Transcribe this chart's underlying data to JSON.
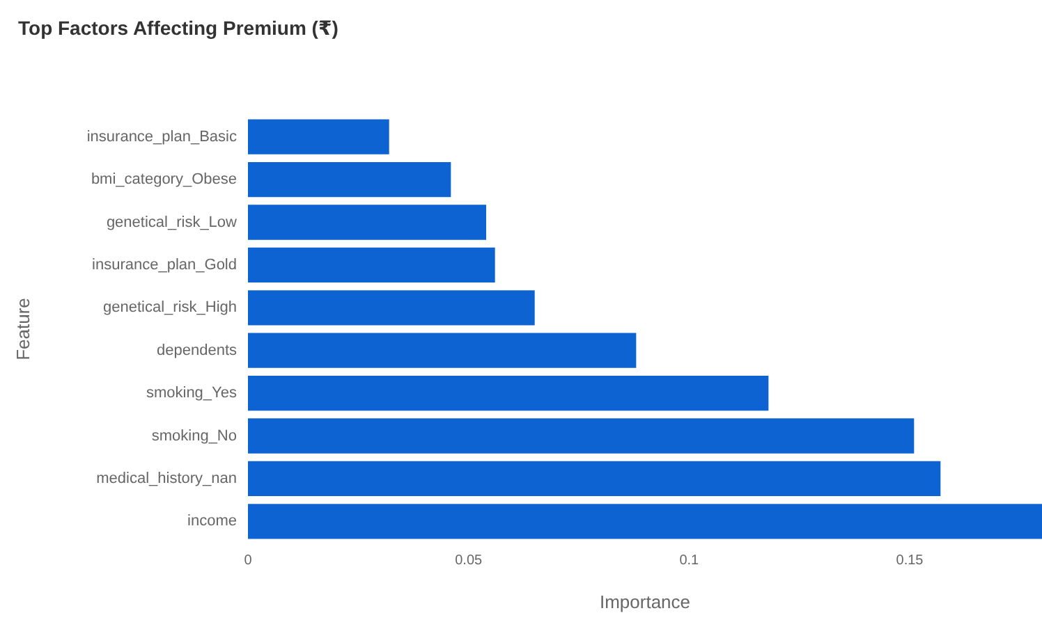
{
  "chart_data": {
    "type": "bar",
    "orientation": "horizontal",
    "title": "Top Factors Affecting Premium (₹)",
    "xlabel": "Importance",
    "ylabel": "Feature",
    "categories": [
      "insurance_plan_Basic",
      "bmi_category_Obese",
      "genetical_risk_Low",
      "insurance_plan_Gold",
      "genetical_risk_High",
      "dependents",
      "smoking_Yes",
      "smoking_No",
      "medical_history_nan",
      "income"
    ],
    "values": [
      0.032,
      0.046,
      0.054,
      0.056,
      0.065,
      0.088,
      0.118,
      0.151,
      0.157,
      0.18
    ],
    "color": "#0d63d1",
    "xlim": [
      0,
      0.18
    ],
    "xticks": [
      0,
      0.05,
      0.1,
      0.15
    ],
    "grid": false
  }
}
